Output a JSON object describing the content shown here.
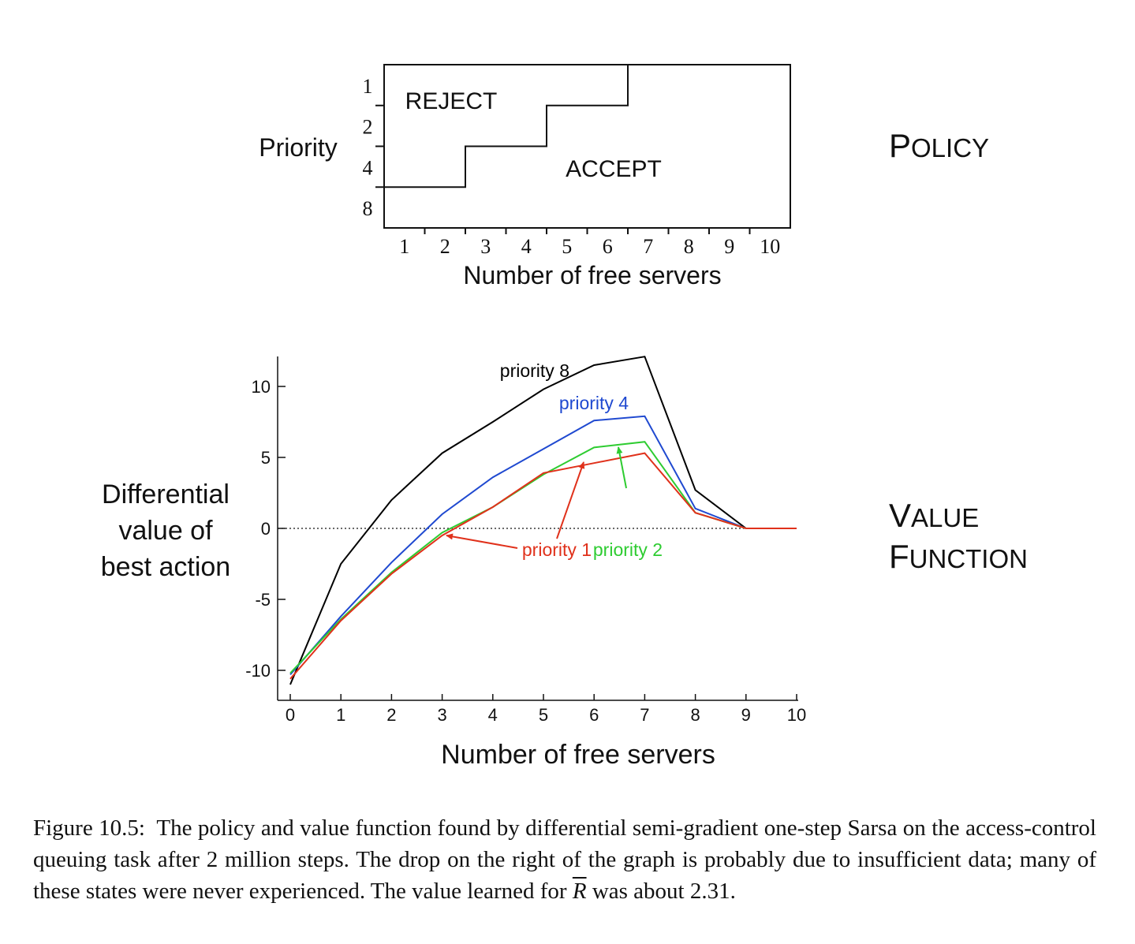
{
  "policy_chart": {
    "type": "step-region",
    "ylabel": "Priority",
    "xlabel": "Number of free servers",
    "y_ticks": [
      "1",
      "2",
      "4",
      "8"
    ],
    "x_ticks": [
      "1",
      "2",
      "3",
      "4",
      "5",
      "6",
      "7",
      "8",
      "9",
      "10"
    ],
    "regions": {
      "reject": "REJECT",
      "accept": "ACCEPT"
    },
    "boundary": [
      {
        "priority": "8",
        "accept_from_free_servers": 0
      },
      {
        "priority": "4",
        "accept_from_free_servers": 2
      },
      {
        "priority": "2",
        "accept_from_free_servers": 4
      },
      {
        "priority": "1",
        "accept_from_free_servers": 6
      }
    ],
    "side_label": "Policy"
  },
  "chart_data": {
    "type": "line",
    "title": "",
    "xlabel": "Number of free servers",
    "ylabel": "Differential value of best action",
    "ylabel_lines": [
      "Differential",
      "value of",
      "best action"
    ],
    "x": [
      0,
      1,
      2,
      3,
      4,
      5,
      6,
      7,
      8,
      9,
      10
    ],
    "x_ticks": [
      "0",
      "1",
      "2",
      "3",
      "4",
      "5",
      "6",
      "7",
      "8",
      "9",
      "10"
    ],
    "y_ticks": [
      "10",
      "5",
      "0",
      "-5",
      "-10"
    ],
    "y_tick_values": [
      10,
      5,
      0,
      -5,
      -10
    ],
    "xlim": [
      0,
      10
    ],
    "ylim": [
      -12,
      12
    ],
    "zero_line": "dotted",
    "series": [
      {
        "name": "priority 8",
        "color": "#000000",
        "values": [
          -11.0,
          -2.5,
          2.0,
          5.3,
          7.5,
          9.8,
          11.5,
          12.1,
          2.7,
          0.0,
          0.0
        ]
      },
      {
        "name": "priority 4",
        "color": "#1f49d0",
        "values": [
          -10.3,
          -6.2,
          -2.4,
          1.0,
          3.6,
          5.6,
          7.6,
          7.9,
          1.4,
          0.0,
          0.0
        ]
      },
      {
        "name": "priority 2",
        "color": "#2ecc31",
        "values": [
          -10.2,
          -6.4,
          -3.1,
          -0.3,
          1.5,
          3.8,
          5.7,
          6.1,
          1.1,
          0.0,
          0.0
        ]
      },
      {
        "name": "priority 1",
        "color": "#e0311b",
        "values": [
          -10.6,
          -6.5,
          -3.2,
          -0.5,
          1.5,
          3.9,
          4.6,
          5.3,
          1.1,
          0.0,
          0.0
        ]
      }
    ],
    "side_label_lines": [
      "Value",
      "Function"
    ]
  },
  "caption": {
    "figure_label": "Figure 10.5:",
    "text_before_symbol": "The policy and value function found by differential semi-gradient one-step Sarsa on the access-control queuing task after 2 million steps. The drop on the right of the graph is probably due to insufficient data; many of these states were never experienced. The value learned for",
    "symbol": "R",
    "text_after_symbol": "was about 2.31."
  }
}
